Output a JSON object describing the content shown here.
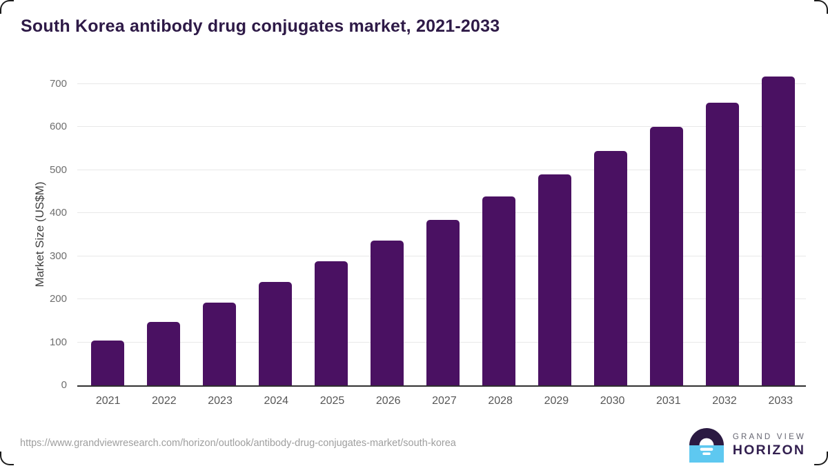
{
  "title": "South Korea antibody drug conjugates market, 2021-2033",
  "colors": {
    "bar": "#4a1162",
    "title": "#2e1a47",
    "gridline": "#e8e8e8",
    "axis_line": "#2f2f2f",
    "logo_blue": "#5ec8f0",
    "logo_dark": "#2b1a42",
    "logo_purple": "#332050"
  },
  "chart_data": {
    "type": "bar",
    "title": "South Korea antibody drug conjugates market, 2021-2033",
    "categories": [
      "2021",
      "2022",
      "2023",
      "2024",
      "2025",
      "2026",
      "2027",
      "2028",
      "2029",
      "2030",
      "2031",
      "2032",
      "2033"
    ],
    "values": [
      105,
      148,
      193,
      240,
      288,
      336,
      385,
      439,
      491,
      545,
      601,
      657,
      718
    ],
    "xlabel": "",
    "ylabel": "Market Size (US$M)",
    "ylim": [
      0,
      700
    ],
    "yticks": [
      0,
      100,
      200,
      300,
      400,
      500,
      600,
      700
    ],
    "grid": true,
    "legend": false,
    "bar_color": "#4a1162"
  },
  "footer": {
    "source_url": "https://www.grandviewresearch.com/horizon/outlook/antibody-drug-conjugates-market/south-korea",
    "logo": {
      "top_text": "GRAND VIEW",
      "bottom_text": "HORIZON"
    }
  }
}
